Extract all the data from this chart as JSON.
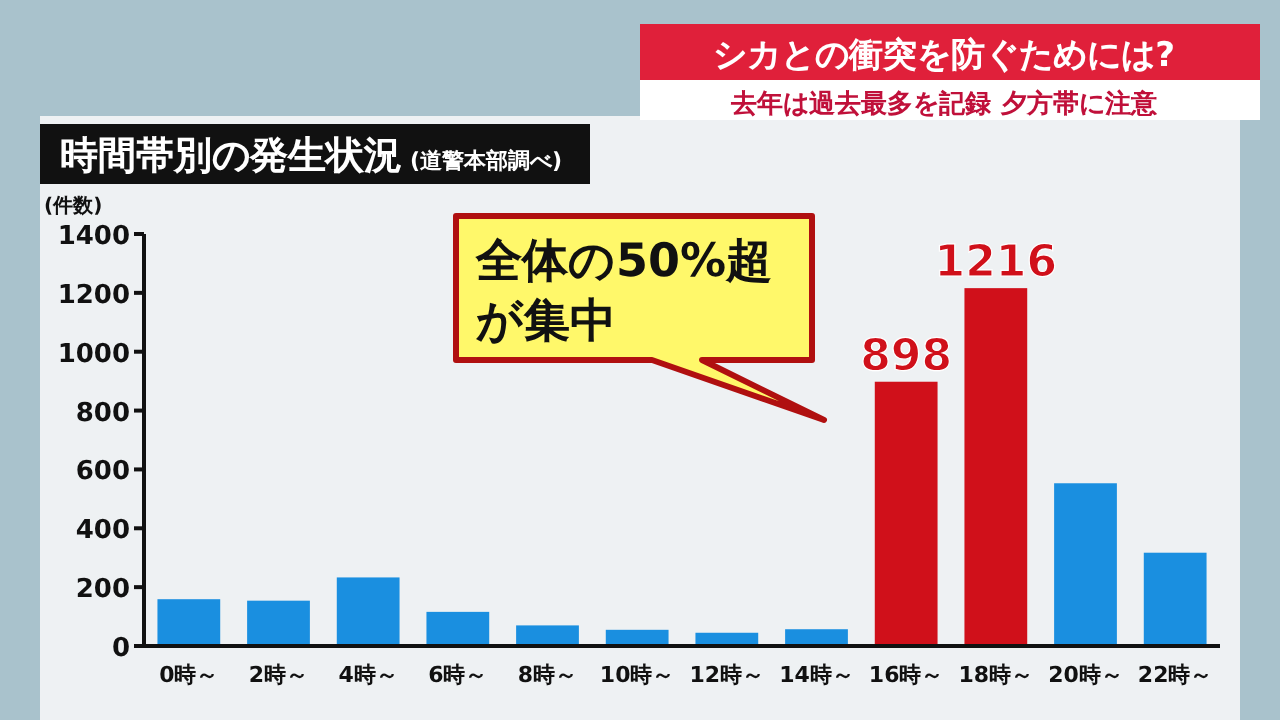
{
  "chart_data": {
    "type": "bar",
    "title": "時間帯別の発生状況",
    "subtitle": "(道警本部調べ)",
    "ylabel": "(件数)",
    "annotations": [
      "シカとの衝突を防ぐためには?",
      "去年は過去最多を記録 夕方帯に注意",
      "全体の50%超が集中"
    ],
    "categories": [
      "0時～",
      "2時～",
      "4時～",
      "6時～",
      "8時～",
      "10時～",
      "12時～",
      "14時～",
      "16時～",
      "18時～",
      "20時～",
      "22時～"
    ],
    "values": [
      159,
      154,
      233,
      116,
      70,
      55,
      45,
      57,
      898,
      1216,
      553,
      317
    ],
    "colors": [
      "#1a8fe0",
      "#1a8fe0",
      "#1a8fe0",
      "#1a8fe0",
      "#1a8fe0",
      "#1a8fe0",
      "#1a8fe0",
      "#1a8fe0",
      "#d0101a",
      "#d0101a",
      "#1a8fe0",
      "#1a8fe0"
    ],
    "value_labels": [
      null,
      null,
      null,
      null,
      null,
      null,
      null,
      null,
      "898",
      "1216",
      null,
      null
    ],
    "ylim": [
      0,
      1400
    ],
    "yticks": [
      0,
      200,
      400,
      600,
      800,
      1000,
      1200,
      1400
    ],
    "grid": false
  }
}
